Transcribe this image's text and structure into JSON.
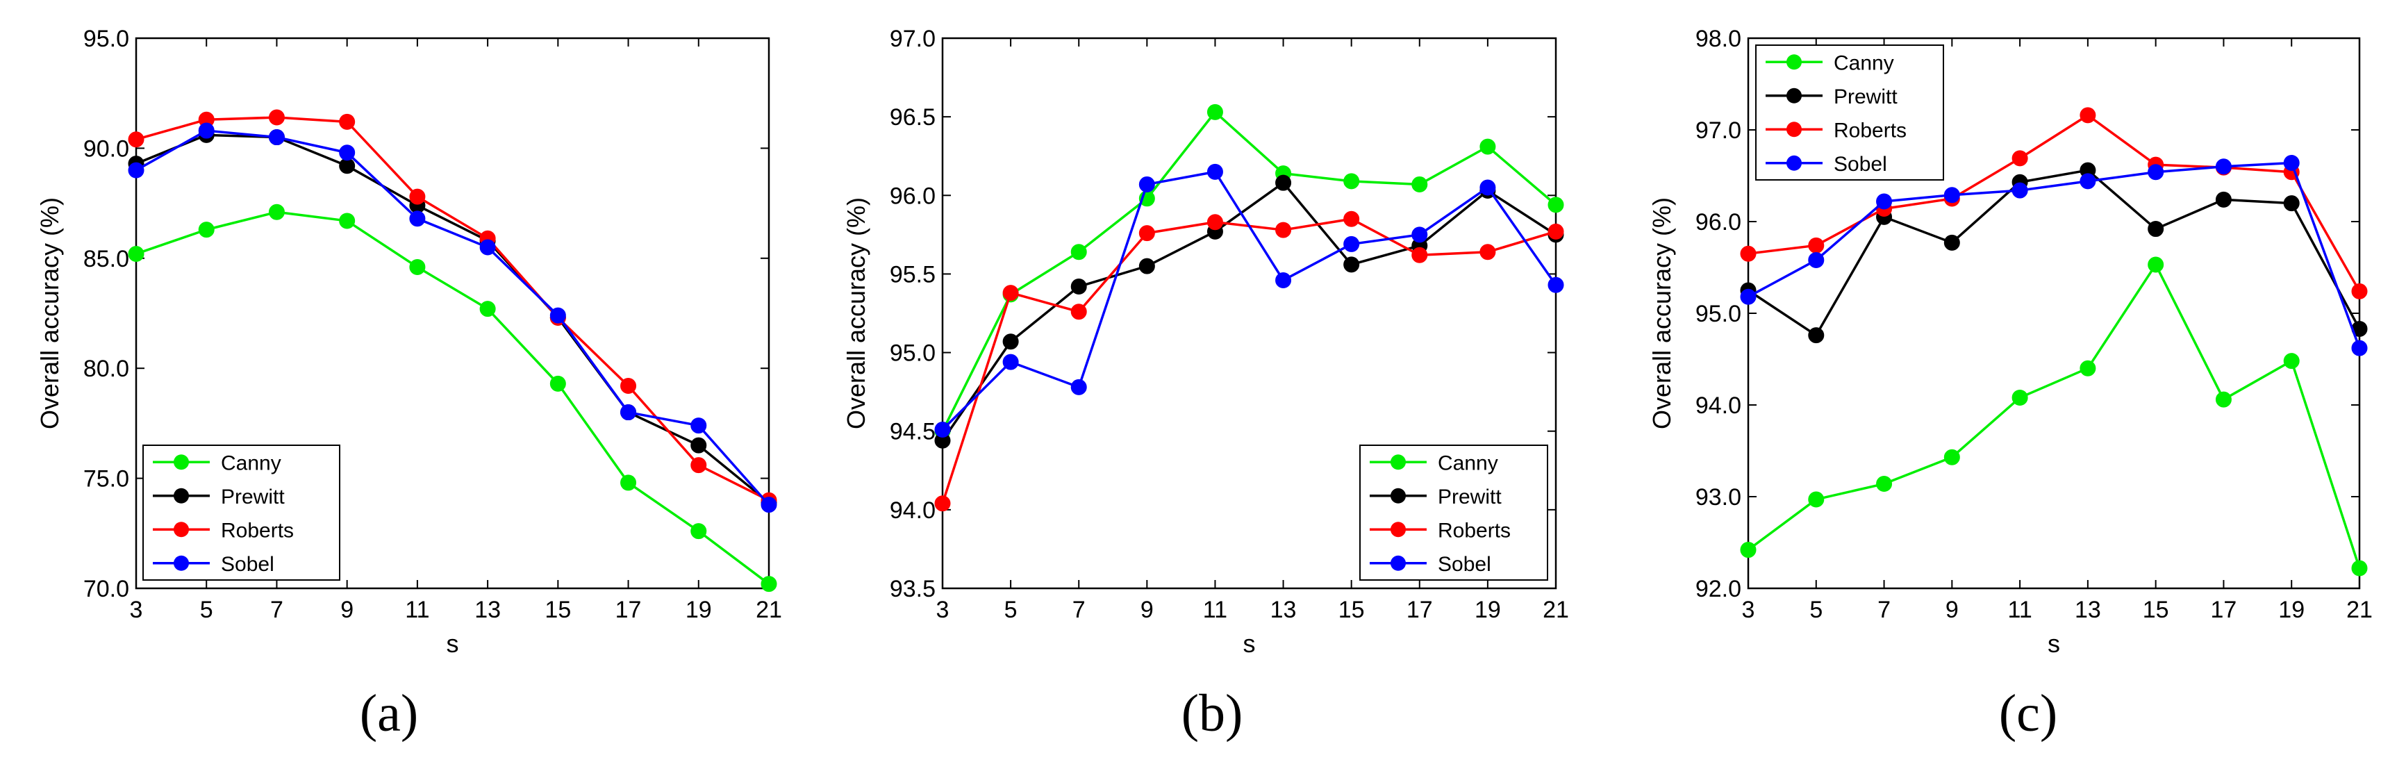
{
  "chart_data": [
    {
      "type": "line",
      "panel_label": "(a)",
      "xlabel": "s",
      "ylabel": "Overall accuracy (%)",
      "x": [
        3,
        5,
        7,
        9,
        11,
        13,
        15,
        17,
        19,
        21
      ],
      "xticks": [
        "3",
        "5",
        "7",
        "9",
        "11",
        "13",
        "15",
        "17",
        "19",
        "21"
      ],
      "ylim": [
        70,
        95
      ],
      "yticks": [
        "70.0",
        "75.0",
        "80.0",
        "85.0",
        "90.0",
        "95.0"
      ],
      "legend_position": "bottom-left",
      "series": [
        {
          "name": "Canny",
          "color": "#00ee00",
          "values": [
            85.2,
            86.3,
            87.1,
            86.7,
            84.6,
            82.7,
            79.3,
            74.8,
            72.6,
            70.2
          ]
        },
        {
          "name": "Prewitt",
          "color": "#000000",
          "values": [
            89.3,
            90.6,
            90.5,
            89.2,
            87.4,
            85.8,
            82.3,
            78.0,
            76.5,
            73.9
          ]
        },
        {
          "name": "Roberts",
          "color": "#ff0000",
          "values": [
            90.4,
            91.3,
            91.4,
            91.2,
            87.8,
            85.9,
            82.3,
            79.2,
            75.6,
            74.0
          ]
        },
        {
          "name": "Sobel",
          "color": "#0000ff",
          "values": [
            89.0,
            90.8,
            90.5,
            89.8,
            86.8,
            85.5,
            82.4,
            78.0,
            77.4,
            73.8
          ]
        }
      ]
    },
    {
      "type": "line",
      "panel_label": "(b)",
      "xlabel": "s",
      "ylabel": "Overall accuracy (%)",
      "x": [
        3,
        5,
        7,
        9,
        11,
        13,
        15,
        17,
        19,
        21
      ],
      "xticks": [
        "3",
        "5",
        "7",
        "9",
        "11",
        "13",
        "15",
        "17",
        "19",
        "21"
      ],
      "ylim": [
        93.5,
        97
      ],
      "yticks": [
        "93.5",
        "94.0",
        "94.5",
        "95.0",
        "95.5",
        "96.0",
        "96.5",
        "97.0"
      ],
      "legend_position": "bottom-right",
      "series": [
        {
          "name": "Canny",
          "color": "#00ee00",
          "values": [
            94.5,
            95.37,
            95.64,
            95.98,
            96.53,
            96.14,
            96.09,
            96.07,
            96.31,
            95.94
          ]
        },
        {
          "name": "Prewitt",
          "color": "#000000",
          "values": [
            94.44,
            95.07,
            95.42,
            95.55,
            95.77,
            96.08,
            95.56,
            95.68,
            96.03,
            95.75
          ]
        },
        {
          "name": "Roberts",
          "color": "#ff0000",
          "values": [
            94.04,
            95.38,
            95.26,
            95.76,
            95.83,
            95.78,
            95.85,
            95.62,
            95.64,
            95.77
          ]
        },
        {
          "name": "Sobel",
          "color": "#0000ff",
          "values": [
            94.51,
            94.94,
            94.78,
            96.07,
            96.15,
            95.46,
            95.69,
            95.75,
            96.05,
            95.43
          ]
        }
      ]
    },
    {
      "type": "line",
      "panel_label": "(c)",
      "xlabel": "s",
      "ylabel": "Overall accuracy (%)",
      "x": [
        3,
        5,
        7,
        9,
        11,
        13,
        15,
        17,
        19,
        21
      ],
      "xticks": [
        "3",
        "5",
        "7",
        "9",
        "11",
        "13",
        "15",
        "17",
        "19",
        "21"
      ],
      "ylim": [
        92,
        98
      ],
      "yticks": [
        "92.0",
        "93.0",
        "94.0",
        "95.0",
        "96.0",
        "97.0",
        "98.0"
      ],
      "legend_position": "top-left",
      "series": [
        {
          "name": "Canny",
          "color": "#00ee00",
          "values": [
            92.42,
            92.97,
            93.14,
            93.43,
            94.08,
            94.4,
            95.53,
            94.06,
            94.48,
            92.22
          ]
        },
        {
          "name": "Prewitt",
          "color": "#000000",
          "values": [
            95.25,
            94.76,
            96.05,
            95.77,
            96.43,
            96.56,
            95.92,
            96.24,
            96.2,
            94.83
          ]
        },
        {
          "name": "Roberts",
          "color": "#ff0000",
          "values": [
            95.65,
            95.74,
            96.14,
            96.25,
            96.69,
            97.16,
            96.62,
            96.59,
            96.54,
            95.24
          ]
        },
        {
          "name": "Sobel",
          "color": "#0000ff",
          "values": [
            95.18,
            95.58,
            96.22,
            96.29,
            96.34,
            96.44,
            96.54,
            96.6,
            96.64,
            94.62
          ]
        }
      ]
    }
  ]
}
